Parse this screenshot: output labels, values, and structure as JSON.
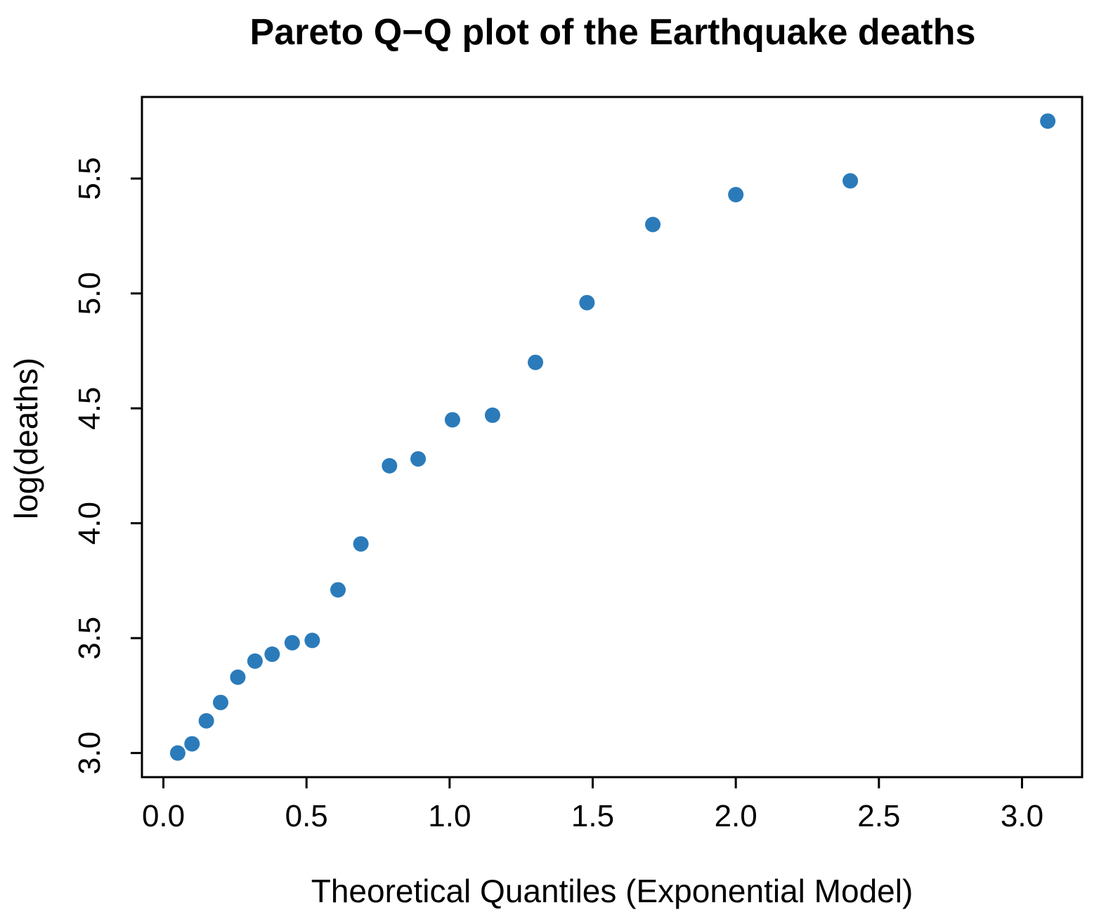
{
  "chart_data": {
    "type": "scatter",
    "title": "Pareto Q−Q plot of the Earthquake deaths",
    "xlabel": "Theoretical Quantiles (Exponential Model)",
    "ylabel": "log(deaths)",
    "xlim": [
      -0.075,
      3.21
    ],
    "ylim": [
      2.895,
      5.855
    ],
    "x_ticks": [
      0.0,
      0.5,
      1.0,
      1.5,
      2.0,
      2.5,
      3.0
    ],
    "x_tick_labels": [
      "0.0",
      "0.5",
      "1.0",
      "1.5",
      "2.0",
      "2.5",
      "3.0"
    ],
    "y_ticks": [
      3.0,
      3.5,
      4.0,
      4.5,
      5.0,
      5.5
    ],
    "y_tick_labels": [
      "3.0",
      "3.5",
      "4.0",
      "4.5",
      "5.0",
      "5.5"
    ],
    "grid": false,
    "marker_color": "#2b7bba",
    "series": [
      {
        "name": "log(deaths)",
        "x": [
          0.05,
          0.1,
          0.15,
          0.2,
          0.26,
          0.32,
          0.38,
          0.45,
          0.52,
          0.61,
          0.69,
          0.79,
          0.89,
          1.01,
          1.15,
          1.3,
          1.48,
          1.71,
          2.0,
          2.4,
          3.09
        ],
        "y": [
          3.0,
          3.04,
          3.14,
          3.22,
          3.33,
          3.4,
          3.43,
          3.48,
          3.49,
          3.71,
          3.91,
          4.25,
          4.28,
          4.45,
          4.47,
          4.7,
          4.96,
          5.3,
          5.43,
          5.49,
          5.75
        ]
      }
    ]
  }
}
